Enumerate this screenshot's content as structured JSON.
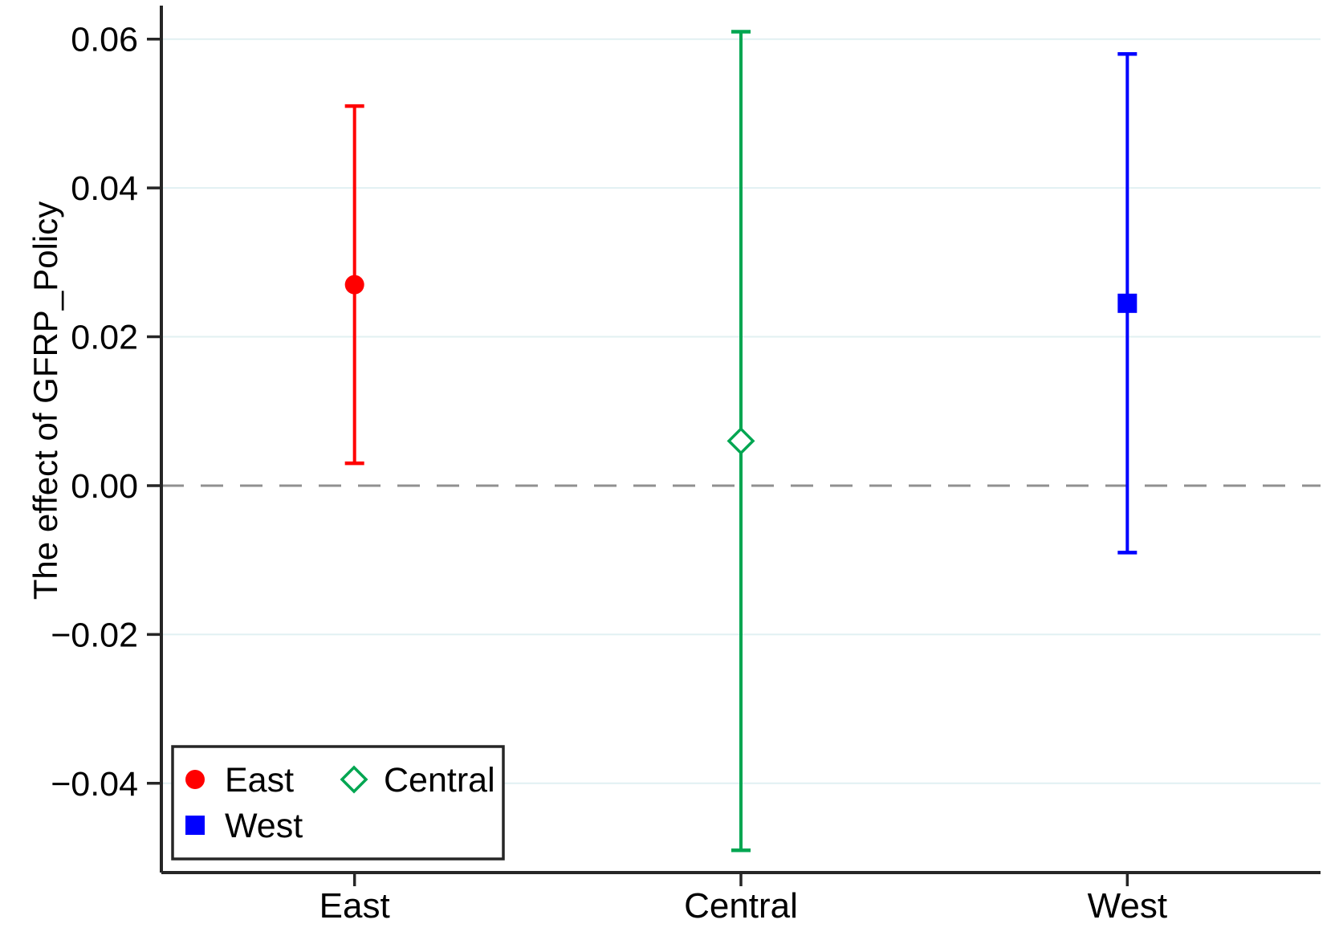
{
  "chart_data": {
    "type": "scatter",
    "subtype": "coefficient-plot-with-error-bars",
    "title": "",
    "xlabel": "",
    "ylabel": "The effect of GFRP_Policy",
    "categories": [
      "East",
      "Central",
      "West"
    ],
    "series": [
      {
        "name": "East",
        "marker": "filled-circle",
        "color": "#ff0000",
        "value": 0.027,
        "ci_low": 0.003,
        "ci_high": 0.051
      },
      {
        "name": "Central",
        "marker": "hollow-diamond",
        "color": "#00a651",
        "value": 0.006,
        "ci_low": -0.049,
        "ci_high": 0.061
      },
      {
        "name": "West",
        "marker": "filled-square",
        "color": "#0000ff",
        "value": 0.0245,
        "ci_low": -0.009,
        "ci_high": 0.058
      }
    ],
    "y_ticks": [
      0.06,
      0.04,
      0.02,
      0.0,
      -0.02,
      -0.04
    ],
    "y_tick_labels": [
      "0.06",
      "0.04",
      "0.02",
      "0.00",
      "−0.02",
      "−0.04"
    ],
    "ylim": [
      -0.052,
      0.0645
    ],
    "grid": true,
    "grid_color": "#e1f0f2",
    "zero_line": {
      "value": 0,
      "style": "dashed",
      "color": "#909090"
    },
    "axis_color": "#262626",
    "text_color": "#000000",
    "legend": {
      "position": "bottom-left",
      "entries": [
        {
          "label": "East",
          "marker": "filled-circle",
          "color": "#ff0000"
        },
        {
          "label": "Central",
          "marker": "hollow-diamond",
          "color": "#00a651"
        },
        {
          "label": "West",
          "marker": "filled-square",
          "color": "#0000ff"
        }
      ]
    }
  }
}
